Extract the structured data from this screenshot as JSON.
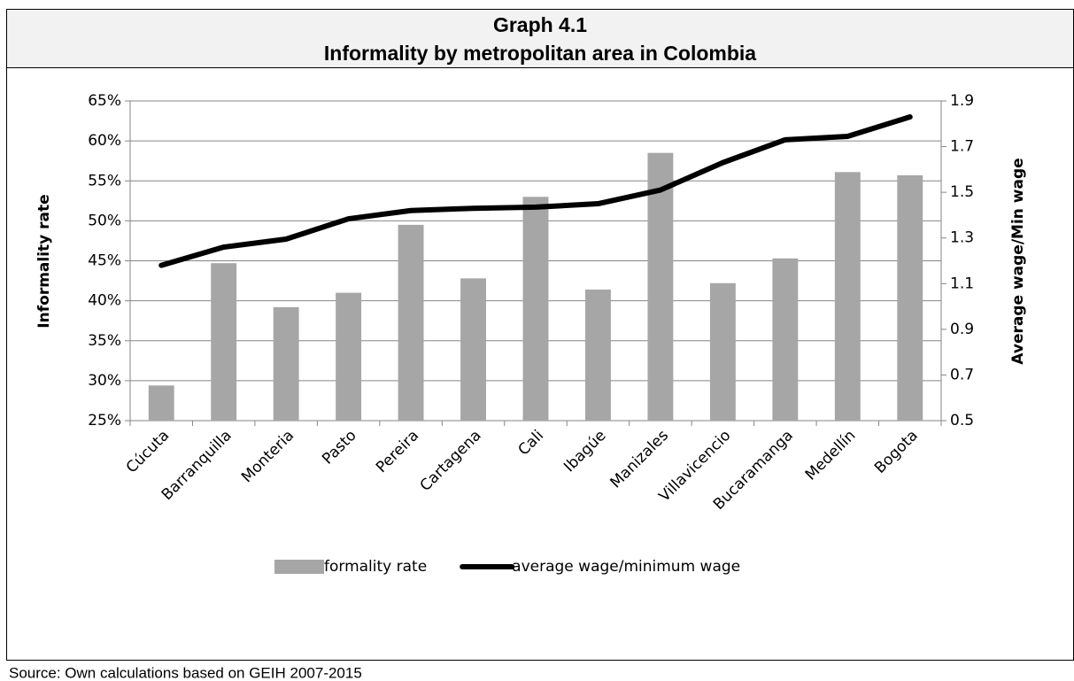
{
  "chart_data": {
    "type": "bar-line",
    "title": "Graph 4.1",
    "subtitle": "Informality by metropolitan area in Colombia",
    "categories": [
      "Cúcuta",
      "Barranquilla",
      "Monteria",
      "Pasto",
      "Pereira",
      "Cartagena",
      "Cali",
      "Ibagúe",
      "Manizales",
      "Villavicencio",
      "Bucaramanga",
      "Medellín",
      "Bogota"
    ],
    "series": [
      {
        "name": "formality rate",
        "type": "bar",
        "color": "#a6a6a6",
        "values": [
          29.4,
          44.7,
          39.2,
          41.0,
          49.5,
          42.8,
          53.0,
          41.4,
          58.5,
          42.2,
          45.3,
          56.1,
          55.7
        ]
      },
      {
        "name": "average wage/minimum wage",
        "type": "line",
        "axis": "y2",
        "color": "#000000",
        "values": [
          1.18,
          1.26,
          1.295,
          1.384,
          1.42,
          1.43,
          1.435,
          1.45,
          1.51,
          1.63,
          1.73,
          1.745,
          1.83
        ]
      }
    ],
    "ylabel": "Informality rate",
    "y2label": "Average wage/Min wage",
    "ylim": [
      25,
      65
    ],
    "yticks": [
      {
        "value": 25,
        "label": "25%"
      },
      {
        "value": 30,
        "label": "30%"
      },
      {
        "value": 35,
        "label": "35%"
      },
      {
        "value": 40,
        "label": "40%"
      },
      {
        "value": 45,
        "label": "45%"
      },
      {
        "value": 50,
        "label": "50%"
      },
      {
        "value": 55,
        "label": "55%"
      },
      {
        "value": 60,
        "label": "60%"
      },
      {
        "value": 65,
        "label": "65%"
      }
    ],
    "y2lim": [
      0.5,
      1.9
    ],
    "y2ticks": [
      0.5,
      0.7,
      0.9,
      1.1,
      1.3,
      1.5,
      1.7,
      1.9
    ],
    "grid": true,
    "legend": "bottom"
  },
  "source": "Source: Own calculations based on GEIH 2007-2015"
}
